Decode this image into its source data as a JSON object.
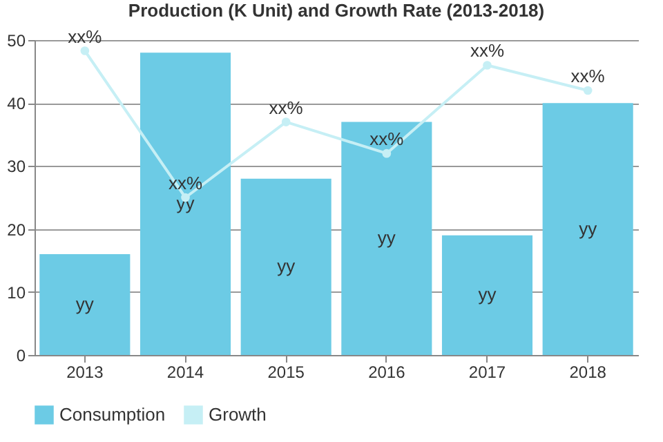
{
  "chart_data": {
    "type": "bar",
    "title": "Production (K Unit) and Growth Rate (2013-2018)",
    "categories": [
      "2013",
      "2014",
      "2015",
      "2016",
      "2017",
      "2018"
    ],
    "series": [
      {
        "name": "Consumption",
        "color": "#6ccbe5",
        "values": [
          16,
          48,
          28,
          37,
          19,
          40
        ],
        "value_labels": [
          "yy",
          "yy",
          "yy",
          "yy",
          "yy",
          "yy"
        ]
      },
      {
        "name": "Growth",
        "type": "line",
        "color": "#c6eff5",
        "values": [
          48.3,
          25,
          37,
          32,
          46,
          42
        ],
        "value_labels": [
          "xx%",
          "xx%",
          "xx%",
          "xx%",
          "xx%",
          "xx%"
        ]
      }
    ],
    "ylim": [
      0,
      50
    ],
    "yticks": [
      0,
      10,
      20,
      30,
      40,
      50
    ],
    "grid": "y",
    "legend": "bottom",
    "marker": "circle"
  }
}
